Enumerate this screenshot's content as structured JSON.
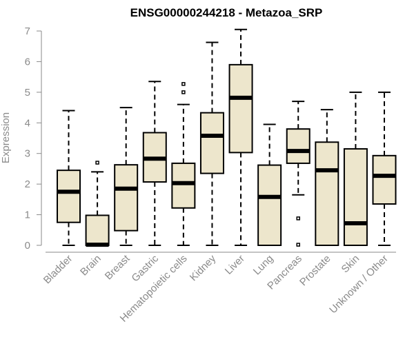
{
  "chart_data": {
    "type": "boxplot",
    "title": "ENSG00000244218 - Metazoa_SRP",
    "xlabel": "",
    "ylabel": "Expression",
    "ylim": [
      0,
      7
    ],
    "yticks": [
      0,
      1,
      2,
      3,
      4,
      5,
      6,
      7
    ],
    "grid": false,
    "categories": [
      "Bladder",
      "Brain",
      "Breast",
      "Gastric",
      "Hematopoietic cells",
      "Kidney",
      "Liver",
      "Lung",
      "Pancreas",
      "Prostate",
      "Skin",
      "Unknown / Other"
    ],
    "boxes": [
      {
        "category": "Bladder",
        "min": 0,
        "q1": 0.75,
        "median": 1.75,
        "q3": 2.45,
        "max": 4.4,
        "outliers": []
      },
      {
        "category": "Brain",
        "min": 0,
        "q1": 0,
        "median": 0.02,
        "q3": 0.98,
        "max": 2.4,
        "outliers": [
          2.7
        ]
      },
      {
        "category": "Breast",
        "min": 0,
        "q1": 0.48,
        "median": 1.85,
        "q3": 2.63,
        "max": 4.5,
        "outliers": []
      },
      {
        "category": "Gastric",
        "min": 0,
        "q1": 2.07,
        "median": 2.83,
        "q3": 3.68,
        "max": 5.35,
        "outliers": []
      },
      {
        "category": "Hematopoietic cells",
        "min": 0,
        "q1": 1.22,
        "median": 2.03,
        "q3": 2.68,
        "max": 4.6,
        "outliers": [
          5.0,
          5.27
        ]
      },
      {
        "category": "Kidney",
        "min": 0,
        "q1": 2.35,
        "median": 3.58,
        "q3": 4.33,
        "max": 6.63,
        "outliers": []
      },
      {
        "category": "Liver",
        "min": 0,
        "q1": 3.03,
        "median": 4.82,
        "q3": 5.9,
        "max": 7.05,
        "outliers": []
      },
      {
        "category": "Lung",
        "min": 0,
        "q1": 0,
        "median": 1.58,
        "q3": 2.62,
        "max": 3.95,
        "outliers": []
      },
      {
        "category": "Pancreas",
        "min": 1.65,
        "q1": 2.68,
        "median": 3.08,
        "q3": 3.8,
        "max": 4.7,
        "outliers": [
          0.88,
          0.02
        ]
      },
      {
        "category": "Prostate",
        "min": 0,
        "q1": 0,
        "median": 2.45,
        "q3": 3.37,
        "max": 4.43,
        "outliers": []
      },
      {
        "category": "Skin",
        "min": 0,
        "q1": 0,
        "median": 0.72,
        "q3": 3.15,
        "max": 5.0,
        "outliers": []
      },
      {
        "category": "Unknown / Other",
        "min": 0,
        "q1": 1.35,
        "median": 2.27,
        "q3": 2.93,
        "max": 5.0,
        "outliers": []
      }
    ],
    "colors": {
      "box_fill": "#ede6cc",
      "box_stroke": "#000000",
      "axis": "#8a8a8a",
      "label": "#8a8a8a",
      "title": "#000000"
    }
  }
}
